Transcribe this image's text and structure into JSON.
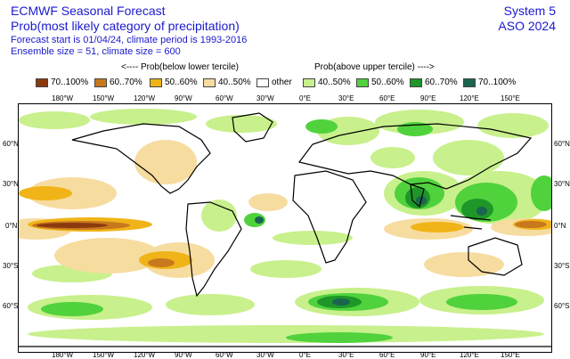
{
  "header": {
    "title": "ECMWF Seasonal Forecast",
    "subtitle": "Prob(most likely category of precipitation)",
    "info1": "Forecast start is 01/04/24, climate period is 1993-2016",
    "info2": "Ensemble size = 51, climate size = 600",
    "system": "System 5",
    "season": "ASO 2024"
  },
  "legend": {
    "below_label": "<---- Prob(below lower tercile)",
    "above_label": "Prob(above upper tercile) ---->",
    "items": [
      {
        "label": "70..100%",
        "color": "#8b3a0f"
      },
      {
        "label": "60..70%",
        "color": "#c8781e"
      },
      {
        "label": "50..60%",
        "color": "#f0b418"
      },
      {
        "label": "40..50%",
        "color": "#f7dca0"
      },
      {
        "label": "other",
        "color": "#ffffff"
      },
      {
        "label": "40..50%",
        "color": "#c8f08c"
      },
      {
        "label": "50..60%",
        "color": "#50d23c"
      },
      {
        "label": "60..70%",
        "color": "#1e9628"
      },
      {
        "label": "70..100%",
        "color": "#1a6450"
      }
    ]
  },
  "axes": {
    "lon_labels": [
      "180°W",
      "150°W",
      "120°W",
      "90°W",
      "60°W",
      "30°W",
      "0°E",
      "30°E",
      "60°E",
      "90°E",
      "120°E",
      "150°E"
    ],
    "lat_labels": [
      "60°N",
      "30°N",
      "0°N",
      "30°S",
      "60°S"
    ]
  }
}
